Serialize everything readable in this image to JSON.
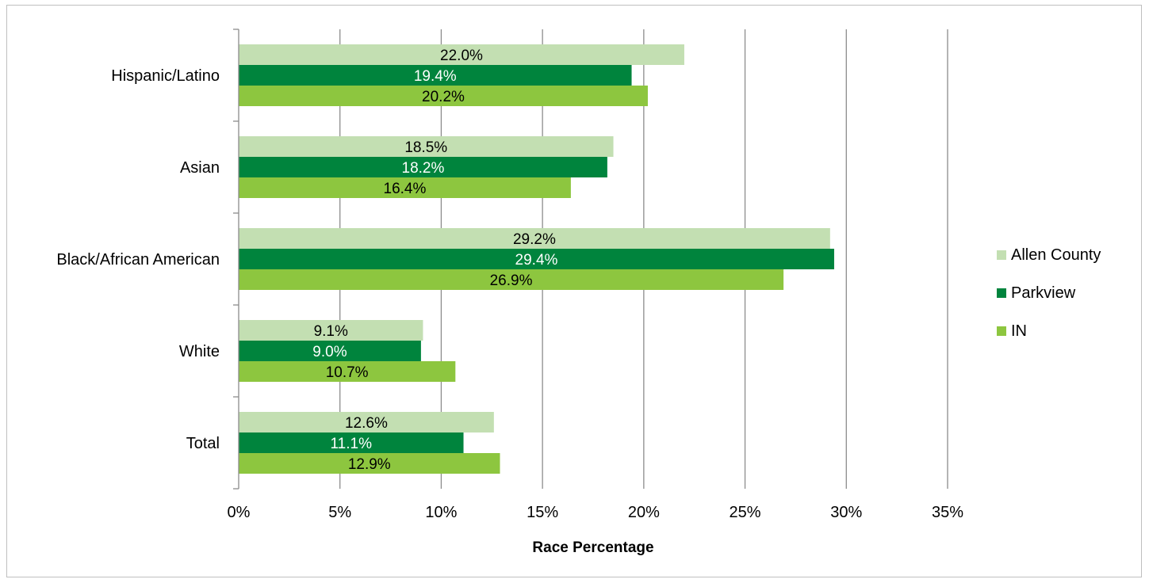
{
  "chart_data": {
    "type": "bar",
    "orientation": "horizontal",
    "categories": [
      "Hispanic/Latino",
      "Asian",
      "Black/African American",
      "White",
      "Total"
    ],
    "series": [
      {
        "name": "Allen County",
        "color": "#c3dfb2",
        "label_color": "#000000",
        "values": [
          22.0,
          18.5,
          29.2,
          9.1,
          12.6
        ]
      },
      {
        "name": "Parkview",
        "color": "#00843d",
        "label_color": "#ffffff",
        "values": [
          19.4,
          18.2,
          29.4,
          9.0,
          11.1
        ]
      },
      {
        "name": "IN",
        "color": "#8dc63f",
        "label_color": "#000000",
        "values": [
          20.2,
          16.4,
          26.9,
          10.7,
          12.9
        ]
      }
    ],
    "data_labels": [
      [
        "22.0%",
        "18.5%",
        "29.2%",
        "9.1%",
        "12.6%"
      ],
      [
        "19.4%",
        "18.2%",
        "29.4%",
        "9.0%",
        "11.1%"
      ],
      [
        "20.2%",
        "16.4%",
        "26.9%",
        "10.7%",
        "12.9%"
      ]
    ],
    "xlim": [
      0,
      35
    ],
    "xticks": [
      0,
      5,
      10,
      15,
      20,
      25,
      30,
      35
    ],
    "xtick_labels": [
      "0%",
      "5%",
      "10%",
      "15%",
      "20%",
      "25%",
      "30%",
      "35%"
    ],
    "xlabel": "Race Percentage",
    "ylabel": "",
    "title": "",
    "grid": "vertical",
    "legend_position": "right"
  }
}
